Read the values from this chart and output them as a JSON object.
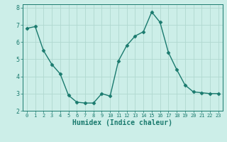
{
  "x": [
    0,
    1,
    2,
    3,
    4,
    5,
    6,
    7,
    8,
    9,
    10,
    11,
    12,
    13,
    14,
    15,
    16,
    17,
    18,
    19,
    20,
    21,
    22,
    23
  ],
  "y": [
    6.8,
    6.9,
    5.5,
    4.7,
    4.15,
    2.9,
    2.5,
    2.45,
    2.45,
    3.0,
    2.85,
    4.9,
    5.8,
    6.35,
    6.6,
    7.75,
    7.15,
    5.4,
    4.4,
    3.5,
    3.1,
    3.05,
    3.0,
    3.0
  ],
  "line_color": "#1a7a6e",
  "marker": "D",
  "markersize": 2.5,
  "linewidth": 1.0,
  "bg_color": "#cceee8",
  "grid_color": "#b0d8d0",
  "xlabel": "Humidex (Indice chaleur)",
  "xlabel_fontsize": 7,
  "xlim": [
    -0.5,
    23.5
  ],
  "ylim": [
    2,
    8.2
  ],
  "yticks": [
    2,
    3,
    4,
    5,
    6,
    7,
    8
  ],
  "xtick_fontsize": 5,
  "ytick_fontsize": 6
}
